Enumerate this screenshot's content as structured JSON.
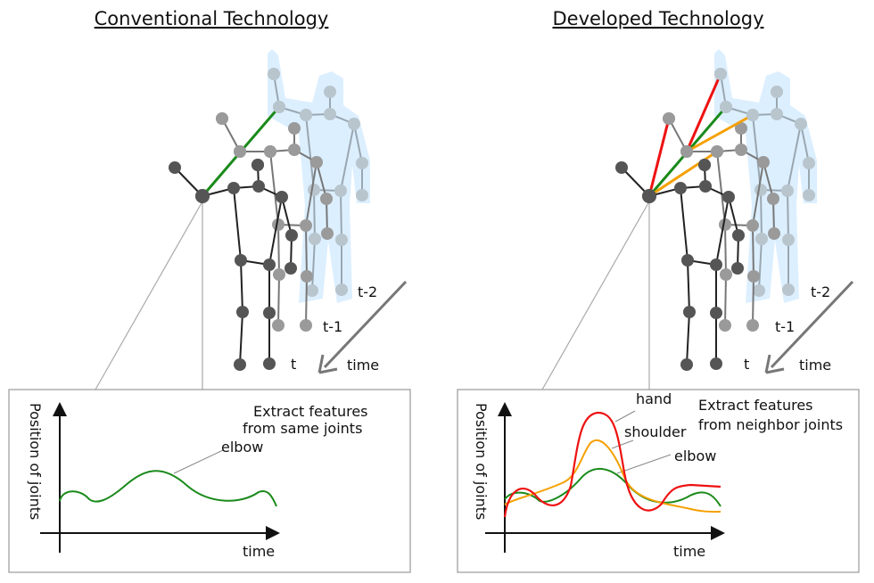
{
  "colors": {
    "current": "#555555",
    "previous": "#9a9a9a",
    "oldest": "#b9c5cd",
    "silhouette": "#dcefff",
    "elbow": "#1a8a1a",
    "shoulder": "#f5a000",
    "hand": "#ee1111",
    "box": "#999999"
  },
  "left": {
    "title": "Conventional Technology",
    "frame_labels": [
      "t",
      "t-1",
      "t-2"
    ],
    "time_label": "time",
    "chart": {
      "ylabel": "Position of joints",
      "xlabel": "time",
      "note_line1": "Extract features",
      "note_line2": "from same joints",
      "series_labels": [
        "elbow"
      ]
    }
  },
  "right": {
    "title": "Developed Technology",
    "frame_labels": [
      "t",
      "t-1",
      "t-2"
    ],
    "time_label": "time",
    "chart": {
      "ylabel": "Position of joints",
      "xlabel": "time",
      "note_line1": "Extract features",
      "note_line2": "from neighbor joints",
      "series_labels": [
        "hand",
        "shoulder",
        "elbow"
      ]
    }
  }
}
